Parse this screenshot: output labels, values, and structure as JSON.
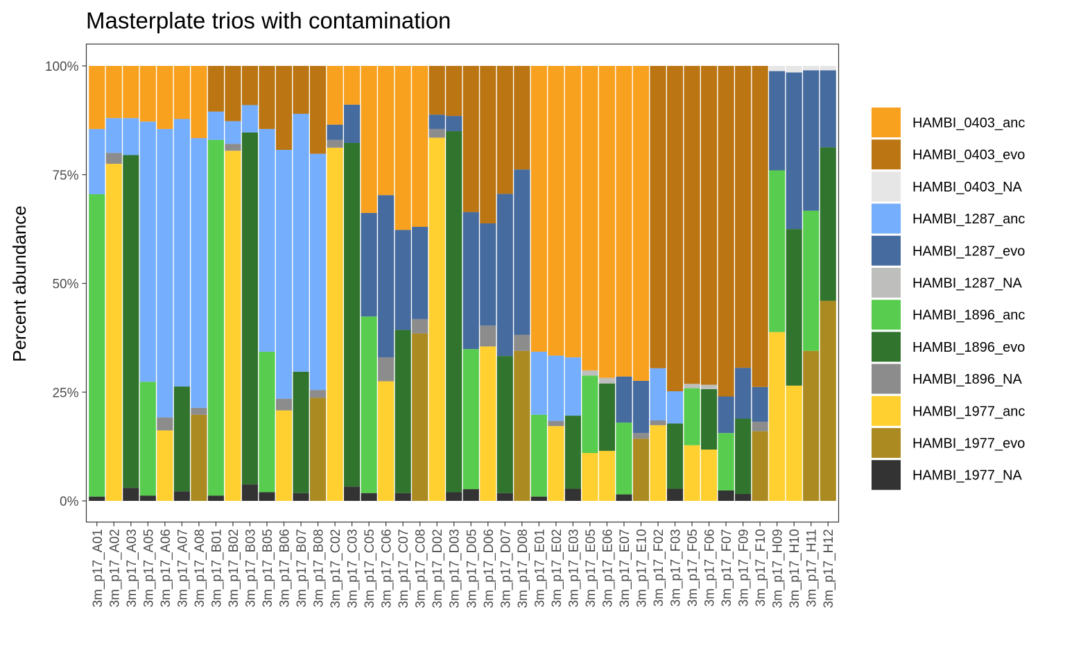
{
  "chart_data": {
    "type": "bar",
    "stacked": true,
    "title": "Masterplate trios with contamination",
    "xlabel": "",
    "ylabel": "Percent abundance",
    "ylim": [
      0,
      1.05
    ],
    "yticks": [
      0,
      0.25,
      0.5,
      0.75,
      1.0
    ],
    "ytick_labels": [
      "0%",
      "25%",
      "50%",
      "75%",
      "100%"
    ],
    "grid": false,
    "legend_position": "right",
    "stack_order": [
      "HAMBI_1977_NA",
      "HAMBI_1977_evo",
      "HAMBI_1977_anc",
      "HAMBI_1896_NA",
      "HAMBI_1896_evo",
      "HAMBI_1896_anc",
      "HAMBI_1287_NA",
      "HAMBI_1287_evo",
      "HAMBI_1287_anc",
      "HAMBI_0403_NA",
      "HAMBI_0403_evo",
      "HAMBI_0403_anc"
    ],
    "legend": [
      {
        "name": "HAMBI_0403_anc",
        "color": "#F8A11F"
      },
      {
        "name": "HAMBI_0403_evo",
        "color": "#BB7512"
      },
      {
        "name": "HAMBI_0403_NA",
        "color": "#E6E6E6"
      },
      {
        "name": "HAMBI_1287_anc",
        "color": "#74AEFC"
      },
      {
        "name": "HAMBI_1287_evo",
        "color": "#466B9F"
      },
      {
        "name": "HAMBI_1287_NA",
        "color": "#BEBEBC"
      },
      {
        "name": "HAMBI_1896_anc",
        "color": "#58CC4E"
      },
      {
        "name": "HAMBI_1896_evo",
        "color": "#30742E"
      },
      {
        "name": "HAMBI_1896_NA",
        "color": "#8C8C8C"
      },
      {
        "name": "HAMBI_1977_anc",
        "color": "#FFD030"
      },
      {
        "name": "HAMBI_1977_evo",
        "color": "#AB8A21"
      },
      {
        "name": "HAMBI_1977_NA",
        "color": "#333333"
      }
    ],
    "categories": [
      "3m_p17_A01",
      "3m_p17_A02",
      "3m_p17_A03",
      "3m_p17_A05",
      "3m_p17_A06",
      "3m_p17_A07",
      "3m_p17_A08",
      "3m_p17_B01",
      "3m_p17_B02",
      "3m_p17_B03",
      "3m_p17_B05",
      "3m_p17_B06",
      "3m_p17_B07",
      "3m_p17_B08",
      "3m_p17_C02",
      "3m_p17_C03",
      "3m_p17_C05",
      "3m_p17_C06",
      "3m_p17_C07",
      "3m_p17_C08",
      "3m_p17_D02",
      "3m_p17_D03",
      "3m_p17_D05",
      "3m_p17_D06",
      "3m_p17_D07",
      "3m_p17_D08",
      "3m_p17_E01",
      "3m_p17_E02",
      "3m_p17_E03",
      "3m_p17_E05",
      "3m_p17_E06",
      "3m_p17_E07",
      "3m_p17_E10",
      "3m_p17_F02",
      "3m_p17_F03",
      "3m_p17_F05",
      "3m_p17_F06",
      "3m_p17_F07",
      "3m_p17_F09",
      "3m_p17_F10",
      "3m_p17_H09",
      "3m_p17_H10",
      "3m_p17_H11",
      "3m_p17_H12"
    ],
    "bars": [
      {
        "HAMBI_1977_NA": 0.01,
        "HAMBI_1896_anc": 0.695,
        "HAMBI_1287_anc": 0.15,
        "HAMBI_0403_anc": 0.145
      },
      {
        "HAMBI_1977_anc": 0.775,
        "HAMBI_1896_NA": 0.025,
        "HAMBI_1287_anc": 0.08,
        "HAMBI_0403_anc": 0.12
      },
      {
        "HAMBI_1977_NA": 0.03,
        "HAMBI_1896_evo": 0.765,
        "HAMBI_1287_anc": 0.085,
        "HAMBI_0403_anc": 0.12
      },
      {
        "HAMBI_1977_NA": 0.012,
        "HAMBI_1896_anc": 0.262,
        "HAMBI_1287_anc": 0.598,
        "HAMBI_0403_anc": 0.128
      },
      {
        "HAMBI_1977_anc": 0.162,
        "HAMBI_1896_NA": 0.03,
        "HAMBI_1287_anc": 0.663,
        "HAMBI_0403_anc": 0.145
      },
      {
        "HAMBI_1977_NA": 0.022,
        "HAMBI_1896_evo": 0.241,
        "HAMBI_1287_anc": 0.615,
        "HAMBI_0403_anc": 0.122
      },
      {
        "HAMBI_1977_evo": 0.198,
        "HAMBI_1896_NA": 0.016,
        "HAMBI_1287_anc": 0.62,
        "HAMBI_0403_anc": 0.166
      },
      {
        "HAMBI_1977_NA": 0.012,
        "HAMBI_1896_anc": 0.818,
        "HAMBI_1287_anc": 0.065,
        "HAMBI_0403_evo": 0.105
      },
      {
        "HAMBI_1977_anc": 0.805,
        "HAMBI_1896_NA": 0.016,
        "HAMBI_1287_anc": 0.052,
        "HAMBI_0403_evo": 0.127
      },
      {
        "HAMBI_1977_NA": 0.038,
        "HAMBI_1896_evo": 0.809,
        "HAMBI_1287_anc": 0.063,
        "HAMBI_0403_evo": 0.09
      },
      {
        "HAMBI_1977_NA": 0.02,
        "HAMBI_1896_anc": 0.323,
        "HAMBI_1287_anc": 0.512,
        "HAMBI_0403_evo": 0.145
      },
      {
        "HAMBI_1977_anc": 0.208,
        "HAMBI_1896_NA": 0.027,
        "HAMBI_1287_anc": 0.572,
        "HAMBI_0403_evo": 0.193
      },
      {
        "HAMBI_1977_NA": 0.018,
        "HAMBI_1896_evo": 0.279,
        "HAMBI_1287_anc": 0.593,
        "HAMBI_0403_evo": 0.11
      },
      {
        "HAMBI_1977_evo": 0.237,
        "HAMBI_1896_NA": 0.018,
        "HAMBI_1287_anc": 0.543,
        "HAMBI_0403_evo": 0.202
      },
      {
        "HAMBI_1977_anc": 0.812,
        "HAMBI_1896_NA": 0.018,
        "HAMBI_1287_evo": 0.035,
        "HAMBI_0403_anc": 0.135
      },
      {
        "HAMBI_1977_NA": 0.033,
        "HAMBI_1896_evo": 0.79,
        "HAMBI_1287_evo": 0.088,
        "HAMBI_0403_anc": 0.089
      },
      {
        "HAMBI_1977_NA": 0.018,
        "HAMBI_1896_anc": 0.406,
        "HAMBI_1287_evo": 0.238,
        "HAMBI_0403_anc": 0.338
      },
      {
        "HAMBI_1977_anc": 0.275,
        "HAMBI_1896_NA": 0.055,
        "HAMBI_1287_evo": 0.373,
        "HAMBI_0403_anc": 0.297
      },
      {
        "HAMBI_1977_NA": 0.018,
        "HAMBI_1896_evo": 0.375,
        "HAMBI_1287_evo": 0.23,
        "HAMBI_0403_anc": 0.377
      },
      {
        "HAMBI_1977_evo": 0.385,
        "HAMBI_1896_NA": 0.033,
        "HAMBI_1287_evo": 0.212,
        "HAMBI_0403_anc": 0.37
      },
      {
        "HAMBI_1977_anc": 0.835,
        "HAMBI_1896_NA": 0.02,
        "HAMBI_1287_evo": 0.033,
        "HAMBI_0403_evo": 0.112
      },
      {
        "HAMBI_1977_NA": 0.02,
        "HAMBI_1896_evo": 0.83,
        "HAMBI_1287_evo": 0.035,
        "HAMBI_0403_evo": 0.115
      },
      {
        "HAMBI_1977_NA": 0.027,
        "HAMBI_1896_anc": 0.322,
        "HAMBI_1287_evo": 0.315,
        "HAMBI_0403_evo": 0.336
      },
      {
        "HAMBI_1977_anc": 0.355,
        "HAMBI_1896_NA": 0.048,
        "HAMBI_1287_evo": 0.235,
        "HAMBI_0403_evo": 0.362
      },
      {
        "HAMBI_1977_NA": 0.018,
        "HAMBI_1896_evo": 0.315,
        "HAMBI_1287_evo": 0.373,
        "HAMBI_0403_evo": 0.294
      },
      {
        "HAMBI_1977_evo": 0.345,
        "HAMBI_1896_NA": 0.037,
        "HAMBI_1287_evo": 0.38,
        "HAMBI_0403_evo": 0.238
      },
      {
        "HAMBI_1977_NA": 0.01,
        "HAMBI_1896_anc": 0.188,
        "HAMBI_1287_anc": 0.145,
        "HAMBI_0403_anc": 0.657
      },
      {
        "HAMBI_1977_anc": 0.172,
        "HAMBI_1896_NA": 0.012,
        "HAMBI_1287_anc": 0.15,
        "HAMBI_0403_anc": 0.666
      },
      {
        "HAMBI_1977_NA": 0.028,
        "HAMBI_1896_evo": 0.168,
        "HAMBI_1287_anc": 0.134,
        "HAMBI_0403_anc": 0.67
      },
      {
        "HAMBI_1977_anc": 0.11,
        "HAMBI_1896_anc": 0.178,
        "HAMBI_1287_NA": 0.012,
        "HAMBI_0403_anc": 0.7
      },
      {
        "HAMBI_1977_anc": 0.115,
        "HAMBI_1896_evo": 0.155,
        "HAMBI_1287_NA": 0.013,
        "HAMBI_0403_anc": 0.717
      },
      {
        "HAMBI_1977_NA": 0.015,
        "HAMBI_1896_anc": 0.165,
        "HAMBI_1287_evo": 0.106,
        "HAMBI_0403_anc": 0.714
      },
      {
        "HAMBI_1977_evo": 0.143,
        "HAMBI_1896_NA": 0.013,
        "HAMBI_1287_evo": 0.12,
        "HAMBI_0403_anc": 0.724
      },
      {
        "HAMBI_1977_anc": 0.174,
        "HAMBI_1896_NA": 0.011,
        "HAMBI_1287_anc": 0.12,
        "HAMBI_0403_evo": 0.695
      },
      {
        "HAMBI_1977_NA": 0.028,
        "HAMBI_1896_evo": 0.15,
        "HAMBI_1287_anc": 0.074,
        "HAMBI_0403_evo": 0.748
      },
      {
        "HAMBI_1977_anc": 0.128,
        "HAMBI_1896_anc": 0.131,
        "HAMBI_1287_NA": 0.01,
        "HAMBI_0403_evo": 0.731
      },
      {
        "HAMBI_1977_anc": 0.118,
        "HAMBI_1896_evo": 0.139,
        "HAMBI_1287_NA": 0.01,
        "HAMBI_0403_evo": 0.733
      },
      {
        "HAMBI_1977_NA": 0.024,
        "HAMBI_1896_anc": 0.132,
        "HAMBI_1287_evo": 0.084,
        "HAMBI_0403_evo": 0.76
      },
      {
        "HAMBI_1977_NA": 0.016,
        "HAMBI_1896_evo": 0.173,
        "HAMBI_1287_evo": 0.117,
        "HAMBI_0403_evo": 0.694
      },
      {
        "HAMBI_1977_evo": 0.16,
        "HAMBI_1896_NA": 0.022,
        "HAMBI_1287_evo": 0.08,
        "HAMBI_0403_evo": 0.738
      },
      {
        "HAMBI_1977_anc": 0.388,
        "HAMBI_1896_anc": 0.372,
        "HAMBI_1287_evo": 0.228,
        "HAMBI_0403_NA": 0.012
      },
      {
        "HAMBI_1977_anc": 0.265,
        "HAMBI_1896_evo": 0.36,
        "HAMBI_1287_evo": 0.36,
        "HAMBI_0403_NA": 0.015
      },
      {
        "HAMBI_1977_evo": 0.345,
        "HAMBI_1896_anc": 0.322,
        "HAMBI_1287_evo": 0.323,
        "HAMBI_0403_NA": 0.01
      },
      {
        "HAMBI_1977_evo": 0.46,
        "HAMBI_1896_evo": 0.353,
        "HAMBI_1287_evo": 0.177,
        "HAMBI_0403_NA": 0.01
      }
    ]
  }
}
